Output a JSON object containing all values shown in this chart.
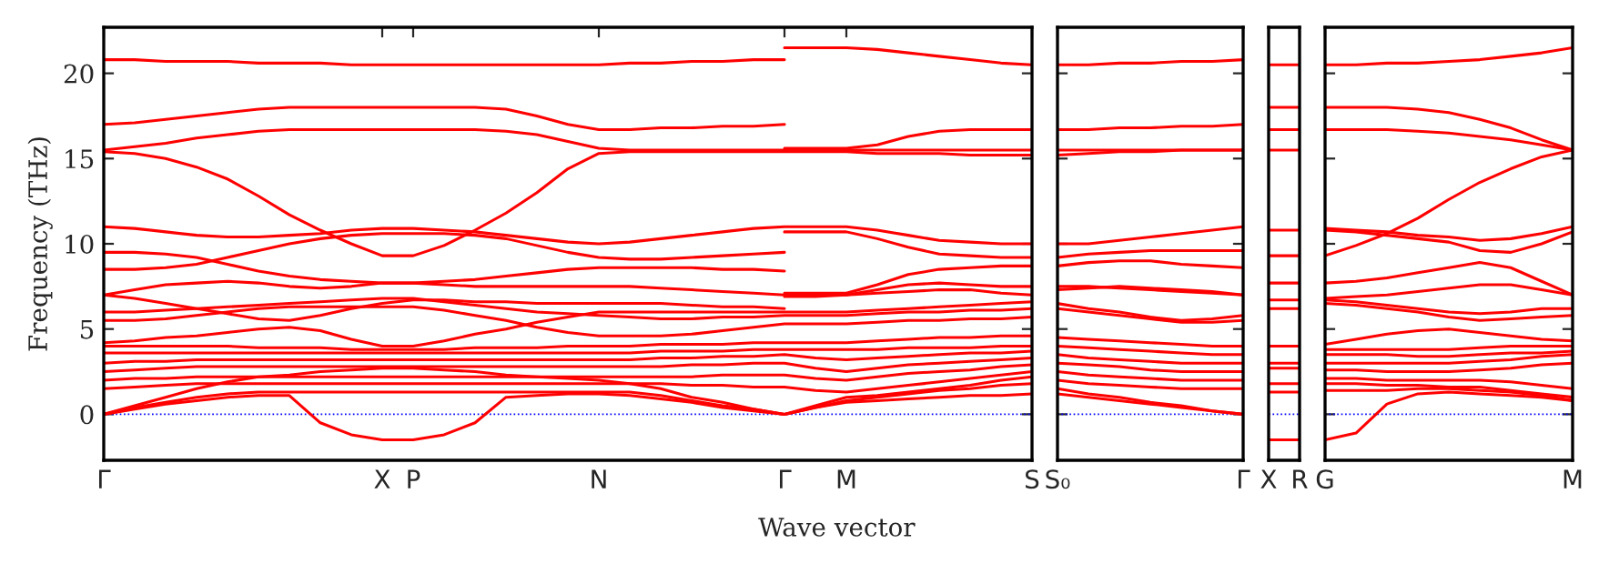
{
  "chart_data": [
    {
      "type": "line",
      "ylabel": "Frequency (THz)",
      "xlabel": "Wave vector",
      "color": "#ff0000",
      "ylim": [
        -2.7,
        22.7
      ],
      "yticks": [
        0,
        5,
        10,
        15,
        20
      ],
      "categories": [
        "Γ",
        null,
        null,
        null,
        null,
        null,
        null,
        null,
        null,
        "X",
        "P",
        null,
        null,
        null,
        null,
        null,
        "N",
        null,
        null,
        null,
        null,
        null,
        "Γ",
        null,
        "M",
        null,
        null,
        null,
        null,
        null,
        "S"
      ],
      "ref_lines": [
        {
          "axis": "y",
          "value": 0,
          "color": "#0000ff",
          "line_style": "dotted"
        }
      ],
      "series": [
        {
          "values": [
            20.8,
            20.8,
            20.7,
            20.7,
            20.7,
            20.6,
            20.6,
            20.6,
            20.5,
            20.5,
            20.5,
            20.5,
            20.5,
            20.5,
            20.5,
            20.5,
            20.5,
            20.6,
            20.6,
            20.7,
            20.7,
            20.8,
            20.8,
            null,
            null,
            null,
            null,
            null,
            null,
            null,
            null
          ]
        },
        {
          "values": [
            17.0,
            17.1,
            17.3,
            17.5,
            17.7,
            17.9,
            18.0,
            18.0,
            18.0,
            18.0,
            18.0,
            18.0,
            18.0,
            17.9,
            17.5,
            17.0,
            16.7,
            16.7,
            16.8,
            16.8,
            16.9,
            16.9,
            17.0,
            null,
            null,
            null,
            null,
            null,
            null,
            null,
            null
          ]
        },
        {
          "values": [
            15.5,
            15.7,
            15.9,
            16.2,
            16.4,
            16.6,
            16.7,
            16.7,
            16.7,
            16.7,
            16.7,
            16.7,
            16.7,
            16.6,
            16.4,
            16.0,
            15.6,
            15.5,
            15.5,
            15.5,
            15.5,
            15.5,
            15.5,
            15.5,
            15.5,
            15.5,
            15.5,
            15.5,
            15.5,
            15.5,
            15.5
          ]
        },
        {
          "values": [
            15.4,
            15.3,
            15.0,
            14.5,
            13.8,
            12.8,
            11.7,
            10.8,
            10.0,
            9.3,
            9.3,
            9.9,
            10.8,
            11.8,
            13.0,
            14.4,
            15.3,
            15.4,
            15.4,
            15.4,
            15.4,
            15.4,
            15.4,
            15.4,
            15.4,
            15.3,
            15.3,
            15.3,
            15.2,
            15.2,
            15.2
          ]
        },
        {
          "values": [
            11.0,
            10.9,
            10.7,
            10.5,
            10.4,
            10.4,
            10.5,
            10.6,
            10.8,
            10.9,
            10.9,
            10.8,
            10.7,
            10.5,
            10.3,
            10.1,
            10.0,
            10.1,
            10.3,
            10.5,
            10.7,
            10.9,
            11.0,
            11.0,
            11.0,
            10.8,
            10.5,
            10.2,
            10.1,
            10.0,
            10.0
          ]
        },
        {
          "values": [
            8.5,
            8.5,
            8.6,
            8.8,
            9.2,
            9.6,
            10.0,
            10.3,
            10.5,
            10.6,
            10.6,
            10.6,
            10.5,
            10.3,
            9.9,
            9.5,
            9.2,
            9.1,
            9.1,
            9.2,
            9.3,
            9.4,
            9.5,
            null,
            null,
            null,
            null,
            null,
            null,
            null,
            null
          ]
        },
        {
          "values": [
            9.5,
            9.5,
            9.4,
            9.2,
            8.8,
            8.4,
            8.1,
            7.9,
            7.8,
            7.7,
            7.7,
            7.8,
            7.9,
            8.1,
            8.3,
            8.5,
            8.6,
            8.6,
            8.6,
            8.6,
            8.5,
            8.5,
            8.4,
            null,
            null,
            null,
            null,
            null,
            null,
            null,
            null
          ]
        },
        {
          "values": [
            7.0,
            7.3,
            7.6,
            7.7,
            7.8,
            7.7,
            7.5,
            7.4,
            7.5,
            7.7,
            7.7,
            7.6,
            7.5,
            7.5,
            7.5,
            7.5,
            7.5,
            7.5,
            7.4,
            7.3,
            7.2,
            7.1,
            7.0,
            7.0,
            7.0,
            7.3,
            7.6,
            7.7,
            7.6,
            7.5,
            7.5
          ]
        },
        {
          "values": [
            7.0,
            6.8,
            6.5,
            6.2,
            5.9,
            5.6,
            5.5,
            5.8,
            6.2,
            6.5,
            6.7,
            6.7,
            6.6,
            6.6,
            6.5,
            6.5,
            6.5,
            6.5,
            6.5,
            6.4,
            6.3,
            6.3,
            6.2,
            null,
            null,
            null,
            null,
            null,
            null,
            null,
            null
          ]
        },
        {
          "values": [
            6.0,
            6.0,
            6.1,
            6.2,
            6.3,
            6.4,
            6.5,
            6.6,
            6.7,
            6.8,
            6.8,
            6.6,
            6.4,
            6.2,
            6.0,
            5.9,
            5.8,
            5.7,
            5.6,
            5.6,
            5.7,
            5.7,
            5.8,
            5.8,
            5.8,
            5.9,
            6.0,
            6.0,
            6.1,
            6.1,
            6.2
          ]
        },
        {
          "values": [
            5.5,
            5.5,
            5.6,
            5.8,
            6.0,
            6.2,
            6.3,
            6.3,
            6.3,
            6.3,
            6.3,
            6.1,
            5.8,
            5.5,
            5.1,
            4.8,
            4.6,
            4.6,
            4.6,
            4.7,
            4.9,
            5.1,
            5.3,
            5.3,
            5.3,
            5.4,
            5.5,
            5.5,
            5.6,
            5.6,
            5.7
          ]
        },
        {
          "values": [
            4.2,
            4.3,
            4.5,
            4.6,
            4.8,
            5.0,
            5.1,
            4.9,
            4.4,
            4.0,
            4.0,
            4.3,
            4.7,
            5.0,
            5.4,
            5.7,
            6.0,
            6.0,
            6.0,
            6.0,
            6.0,
            6.0,
            6.0,
            6.0,
            6.0,
            6.1,
            6.2,
            6.3,
            6.4,
            6.5,
            6.6
          ]
        },
        {
          "values": [
            4.0,
            4.0,
            4.0,
            4.0,
            4.0,
            3.9,
            3.9,
            3.9,
            3.8,
            3.8,
            3.8,
            3.8,
            3.9,
            3.9,
            3.9,
            4.0,
            4.0,
            4.0,
            4.1,
            4.1,
            4.1,
            4.2,
            4.2,
            4.2,
            4.2,
            4.3,
            4.4,
            4.5,
            4.5,
            4.6,
            4.6
          ]
        },
        {
          "values": [
            3.6,
            3.6,
            3.6,
            3.6,
            3.6,
            3.6,
            3.6,
            3.6,
            3.6,
            3.6,
            3.6,
            3.6,
            3.6,
            3.6,
            3.6,
            3.6,
            3.6,
            3.6,
            3.7,
            3.7,
            3.7,
            3.8,
            3.8,
            3.8,
            3.8,
            3.8,
            3.9,
            3.9,
            3.9,
            4.0,
            4.0
          ]
        },
        {
          "values": [
            3.0,
            3.1,
            3.1,
            3.2,
            3.2,
            3.2,
            3.2,
            3.2,
            3.2,
            3.2,
            3.2,
            3.2,
            3.2,
            3.2,
            3.2,
            3.2,
            3.2,
            3.2,
            3.3,
            3.3,
            3.4,
            3.4,
            3.5,
            3.3,
            3.2,
            3.3,
            3.4,
            3.5,
            3.6,
            3.6,
            3.7
          ]
        },
        {
          "values": [
            2.5,
            2.6,
            2.7,
            2.8,
            2.8,
            2.8,
            2.8,
            2.8,
            2.8,
            2.8,
            2.8,
            2.8,
            2.8,
            2.8,
            2.8,
            2.8,
            2.8,
            2.8,
            2.8,
            2.9,
            2.9,
            3.0,
            3.0,
            2.7,
            2.5,
            2.7,
            2.9,
            3.0,
            3.1,
            3.2,
            3.3
          ]
        },
        {
          "values": [
            2.0,
            2.1,
            2.1,
            2.2,
            2.2,
            2.2,
            2.2,
            2.2,
            2.2,
            2.2,
            2.2,
            2.2,
            2.2,
            2.2,
            2.2,
            2.2,
            2.2,
            2.2,
            2.2,
            2.2,
            2.3,
            2.3,
            2.3,
            2.1,
            2.0,
            2.2,
            2.4,
            2.5,
            2.6,
            2.8,
            2.9
          ]
        },
        {
          "values": [
            1.5,
            1.6,
            1.7,
            1.8,
            1.8,
            1.8,
            1.8,
            1.8,
            1.8,
            1.8,
            1.8,
            1.8,
            1.8,
            1.8,
            1.8,
            1.8,
            1.8,
            1.8,
            1.8,
            1.7,
            1.7,
            1.6,
            1.6,
            1.4,
            1.3,
            1.5,
            1.7,
            1.9,
            2.1,
            2.3,
            2.5
          ]
        },
        {
          "values": [
            0,
            0.5,
            1.0,
            1.5,
            1.9,
            2.2,
            2.3,
            2.5,
            2.6,
            2.7,
            2.7,
            2.6,
            2.5,
            2.3,
            2.2,
            2.1,
            2.0,
            1.8,
            1.5,
            1.0,
            0.7,
            0.3,
            0,
            0.5,
            1.0,
            1.1,
            1.3,
            1.5,
            1.7,
            2.0,
            2.2
          ]
        },
        {
          "values": [
            0,
            0.4,
            0.7,
            1.0,
            1.2,
            1.3,
            1.3,
            1.3,
            1.3,
            1.3,
            1.3,
            1.3,
            1.3,
            1.3,
            1.3,
            1.3,
            1.3,
            1.3,
            1.1,
            0.8,
            0.5,
            0.3,
            0,
            0.4,
            0.8,
            1.0,
            1.2,
            1.4,
            1.5,
            1.7,
            1.8
          ]
        },
        {
          "values": [
            0,
            0.3,
            0.6,
            0.8,
            1.0,
            1.1,
            1.1,
            -0.5,
            -1.2,
            -1.5,
            -1.5,
            -1.2,
            -0.5,
            1.0,
            1.1,
            1.2,
            1.2,
            1.1,
            0.9,
            0.7,
            0.4,
            0.2,
            0,
            0.4,
            0.7,
            0.8,
            0.9,
            1.0,
            1.1,
            1.1,
            1.2
          ]
        },
        {
          "values": [
            null,
            null,
            null,
            null,
            null,
            null,
            null,
            null,
            null,
            null,
            null,
            null,
            null,
            null,
            null,
            null,
            null,
            null,
            null,
            null,
            null,
            null,
            21.5,
            21.5,
            21.5,
            21.4,
            21.2,
            21.0,
            20.8,
            20.6,
            20.5
          ]
        },
        {
          "values": [
            null,
            null,
            null,
            null,
            null,
            null,
            null,
            null,
            null,
            null,
            null,
            null,
            null,
            null,
            null,
            null,
            null,
            null,
            null,
            null,
            null,
            null,
            15.6,
            15.6,
            15.6,
            15.8,
            16.3,
            16.6,
            16.7,
            16.7,
            16.7
          ]
        },
        {
          "values": [
            null,
            null,
            null,
            null,
            null,
            null,
            null,
            null,
            null,
            null,
            null,
            null,
            null,
            null,
            null,
            null,
            null,
            null,
            null,
            null,
            null,
            null,
            10.7,
            10.7,
            10.7,
            10.3,
            9.8,
            9.4,
            9.3,
            9.2,
            9.2
          ]
        },
        {
          "values": [
            null,
            null,
            null,
            null,
            null,
            null,
            null,
            null,
            null,
            null,
            null,
            null,
            null,
            null,
            null,
            null,
            null,
            null,
            null,
            null,
            null,
            null,
            7.1,
            7.1,
            7.1,
            7.6,
            8.2,
            8.5,
            8.6,
            8.7,
            8.7
          ]
        },
        {
          "values": [
            null,
            null,
            null,
            null,
            null,
            null,
            null,
            null,
            null,
            null,
            null,
            null,
            null,
            null,
            null,
            null,
            null,
            null,
            null,
            null,
            null,
            null,
            6.9,
            6.9,
            7.0,
            7.1,
            7.2,
            7.3,
            7.3,
            7.1,
            7.0
          ]
        }
      ]
    },
    {
      "type": "line",
      "color": "#ff0000",
      "ylim": [
        -2.7,
        22.7
      ],
      "yticks": [
        0,
        5,
        10,
        15,
        20
      ],
      "tick_labels": "x",
      "categories": [
        "S₀",
        null,
        null,
        null,
        null,
        null,
        "Γ"
      ],
      "ref_lines": [
        {
          "axis": "y",
          "value": 0,
          "color": "#0000ff",
          "line_style": "dotted"
        }
      ],
      "series": [
        {
          "values": [
            20.5,
            20.5,
            20.6,
            20.6,
            20.7,
            20.7,
            20.8
          ]
        },
        {
          "values": [
            16.7,
            16.7,
            16.8,
            16.8,
            16.9,
            16.9,
            17.0
          ]
        },
        {
          "values": [
            15.5,
            15.5,
            15.5,
            15.5,
            15.5,
            15.5,
            15.5
          ]
        },
        {
          "values": [
            15.2,
            15.3,
            15.4,
            15.4,
            15.5,
            15.5,
            15.5
          ]
        },
        {
          "values": [
            10.0,
            10.0,
            10.2,
            10.4,
            10.6,
            10.8,
            11.0
          ]
        },
        {
          "values": [
            9.2,
            9.4,
            9.5,
            9.6,
            9.6,
            9.6,
            9.6
          ]
        },
        {
          "values": [
            8.7,
            8.9,
            9.0,
            9.0,
            8.8,
            8.7,
            8.6
          ]
        },
        {
          "values": [
            7.5,
            7.5,
            7.4,
            7.3,
            7.2,
            7.1,
            7.0
          ]
        },
        {
          "values": [
            7.3,
            7.4,
            7.5,
            7.4,
            7.3,
            7.2,
            7.0
          ]
        },
        {
          "values": [
            6.5,
            6.2,
            6.0,
            5.7,
            5.5,
            5.6,
            5.8
          ]
        },
        {
          "values": [
            6.2,
            6.0,
            5.8,
            5.6,
            5.4,
            5.4,
            5.5
          ]
        },
        {
          "values": [
            4.5,
            4.4,
            4.3,
            4.2,
            4.1,
            4.0,
            4.0
          ]
        },
        {
          "values": [
            4.0,
            3.9,
            3.8,
            3.7,
            3.6,
            3.5,
            3.5
          ]
        },
        {
          "values": [
            3.5,
            3.3,
            3.2,
            3.1,
            3.0,
            3.0,
            3.0
          ]
        },
        {
          "values": [
            3.0,
            2.9,
            2.8,
            2.6,
            2.5,
            2.5,
            2.5
          ]
        },
        {
          "values": [
            2.5,
            2.3,
            2.2,
            2.1,
            2.0,
            2.0,
            2.0
          ]
        },
        {
          "values": [
            2.0,
            1.8,
            1.7,
            1.6,
            1.5,
            1.5,
            1.5
          ]
        },
        {
          "values": [
            1.5,
            1.2,
            1.0,
            0.7,
            0.5,
            0.2,
            0
          ]
        },
        {
          "values": [
            1.2,
            1.0,
            0.8,
            0.6,
            0.4,
            0.2,
            0
          ]
        }
      ]
    },
    {
      "type": "line",
      "color": "#ff0000",
      "ylim": [
        -2.7,
        22.7
      ],
      "tick_labels": "x",
      "categories": [
        "X",
        "R"
      ],
      "ref_lines": [
        {
          "axis": "y",
          "value": 0,
          "color": "#0000ff",
          "line_style": "dotted"
        }
      ],
      "series": [
        {
          "values": [
            20.5,
            20.5
          ]
        },
        {
          "values": [
            18.0,
            18.0
          ]
        },
        {
          "values": [
            16.7,
            16.7
          ]
        },
        {
          "values": [
            15.5,
            15.5
          ]
        },
        {
          "values": [
            10.8,
            10.8
          ]
        },
        {
          "values": [
            9.3,
            9.3
          ]
        },
        {
          "values": [
            7.7,
            7.7
          ]
        },
        {
          "values": [
            6.7,
            6.7
          ]
        },
        {
          "values": [
            6.2,
            6.2
          ]
        },
        {
          "values": [
            4.0,
            4.0
          ]
        },
        {
          "values": [
            3.0,
            3.0
          ]
        },
        {
          "values": [
            2.7,
            2.7
          ]
        },
        {
          "values": [
            1.8,
            1.8
          ]
        },
        {
          "values": [
            1.3,
            1.3
          ]
        },
        {
          "values": [
            -1.5,
            -1.5
          ]
        }
      ]
    },
    {
      "type": "line",
      "color": "#ff0000",
      "ylim": [
        -2.7,
        22.7
      ],
      "yticks": [
        0,
        5,
        10,
        15,
        20
      ],
      "tick_labels": "x",
      "categories": [
        "G",
        null,
        null,
        null,
        null,
        null,
        null,
        null,
        "M"
      ],
      "ref_lines": [
        {
          "axis": "y",
          "value": 0,
          "color": "#0000ff",
          "line_style": "dotted"
        }
      ],
      "series": [
        {
          "values": [
            20.5,
            20.5,
            20.6,
            20.6,
            20.7,
            20.8,
            21.0,
            21.2,
            21.5
          ]
        },
        {
          "values": [
            18.0,
            18.0,
            18.0,
            17.9,
            17.7,
            17.3,
            16.8,
            16.1,
            15.5
          ]
        },
        {
          "values": [
            16.7,
            16.7,
            16.7,
            16.6,
            16.5,
            16.3,
            16.1,
            15.8,
            15.5
          ]
        },
        {
          "values": [
            9.3,
            9.9,
            10.6,
            11.5,
            12.6,
            13.6,
            14.4,
            15.1,
            15.5
          ]
        },
        {
          "values": [
            10.9,
            10.8,
            10.7,
            10.5,
            10.4,
            10.2,
            10.3,
            10.6,
            11.0
          ]
        },
        {
          "values": [
            10.8,
            10.7,
            10.5,
            10.3,
            10.1,
            9.6,
            9.5,
            10.0,
            10.7
          ]
        },
        {
          "values": [
            7.7,
            7.8,
            8.0,
            8.3,
            8.6,
            8.9,
            8.6,
            7.8,
            7.0
          ]
        },
        {
          "values": [
            6.8,
            6.9,
            7.0,
            7.2,
            7.4,
            7.6,
            7.6,
            7.3,
            7.0
          ]
        },
        {
          "values": [
            6.7,
            6.6,
            6.4,
            6.2,
            6.0,
            5.9,
            6.0,
            6.2,
            6.2
          ]
        },
        {
          "values": [
            6.5,
            6.4,
            6.2,
            6.0,
            5.7,
            5.5,
            5.6,
            5.7,
            5.8
          ]
        },
        {
          "values": [
            4.1,
            4.4,
            4.7,
            4.9,
            5.0,
            4.8,
            4.6,
            4.4,
            4.3
          ]
        },
        {
          "values": [
            3.8,
            3.8,
            3.8,
            3.8,
            3.8,
            3.9,
            4.0,
            4.0,
            4.0
          ]
        },
        {
          "values": [
            3.5,
            3.5,
            3.5,
            3.4,
            3.4,
            3.5,
            3.6,
            3.6,
            3.7
          ]
        },
        {
          "values": [
            3.0,
            3.0,
            3.0,
            3.0,
            3.0,
            3.1,
            3.2,
            3.4,
            3.5
          ]
        },
        {
          "values": [
            2.6,
            2.6,
            2.5,
            2.5,
            2.5,
            2.6,
            2.7,
            2.9,
            3.0
          ]
        },
        {
          "values": [
            2.1,
            2.1,
            2.0,
            2.0,
            2.0,
            2.0,
            1.9,
            1.7,
            1.5
          ]
        },
        {
          "values": [
            1.8,
            1.8,
            1.7,
            1.7,
            1.6,
            1.6,
            1.4,
            1.2,
            1.0
          ]
        },
        {
          "values": [
            1.4,
            1.4,
            1.4,
            1.5,
            1.5,
            1.4,
            1.3,
            1.1,
            0.8
          ]
        },
        {
          "values": [
            -1.5,
            -1.1,
            0.6,
            1.2,
            1.3,
            1.2,
            1.1,
            1.0,
            0.8
          ]
        }
      ]
    }
  ]
}
